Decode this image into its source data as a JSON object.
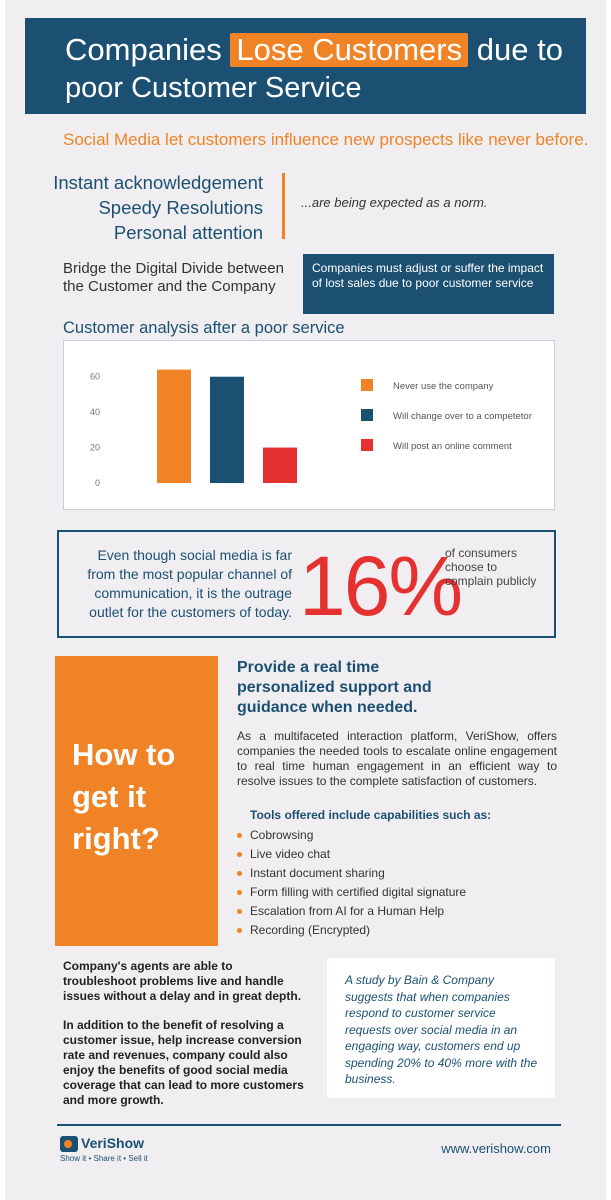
{
  "header": {
    "title_pre": "Companies ",
    "title_highlight": "Lose Customers",
    "title_post": " due to",
    "title_line2": "poor Customer Service"
  },
  "subhead": "Social Media let customers influence new prospects like never before.",
  "expectations": [
    "Instant acknowledgement",
    "Speedy Resolutions",
    "Personal attention"
  ],
  "norm_text": "...are being expected as a norm.",
  "bridge_text": "Bridge the Digital Divide between the Customer and the Company",
  "adjust_text": "Companies must adjust or suffer the impact of lost sales due to poor customer service",
  "chart_data": {
    "type": "bar",
    "title": "Customer analysis after a poor service",
    "categories": [
      "Never use the company",
      "Will change over to a competetor",
      "Will post an online comment"
    ],
    "values": [
      64,
      60,
      20
    ],
    "colors": [
      "#f08326",
      "#1c5073",
      "#e5312f"
    ],
    "yticks": [
      0,
      20,
      40,
      60
    ],
    "ylim": [
      0,
      70
    ],
    "grid": false,
    "legend": "right"
  },
  "stat": {
    "text": "Even though social media is far from the most popular channel of communication, it is the outrage outlet for the customers of today.",
    "percent": "16%",
    "note": "of consumers choose to complain publicly"
  },
  "how": "How to get it right?",
  "provide_title": "Provide a real time personalized support and guidance when needed.",
  "provide_para": "As a multifaceted interaction platform, VeriShow, offers companies the needed tools to escalate online engagement to real time human engagement in an efficient way to resolve issues to the complete satisfaction of customers.",
  "tools_title": "Tools offered include capabilities such as:",
  "tools": [
    "Cobrowsing",
    "Live video chat",
    "Instant document sharing",
    "Form filling with certified digital signature",
    "Escalation from AI for a Human Help",
    "Recording (Encrypted)"
  ],
  "agents_p1": "Company's agents are able to troubleshoot problems live and handle issues without a delay and in great depth.",
  "agents_p2": "In addition to the benefit of resolving a customer issue, help increase conversion rate and revenues, company could also enjoy the benefits of good social media coverage that can lead to more customers and more growth.",
  "study_text": "A study by Bain & Company suggests that when companies respond to customer service requests over social media in an engaging way, customers end up spending 20% to 40% more with the business.",
  "footer": {
    "logo_name": "VeriShow",
    "logo_tag": "Show it  •  Share it  •  Sell it",
    "site": "www.verishow.com"
  },
  "colors": {
    "navy": "#1c5073",
    "orange": "#f08326",
    "red": "#e5312f",
    "background": "#f0eef1"
  }
}
